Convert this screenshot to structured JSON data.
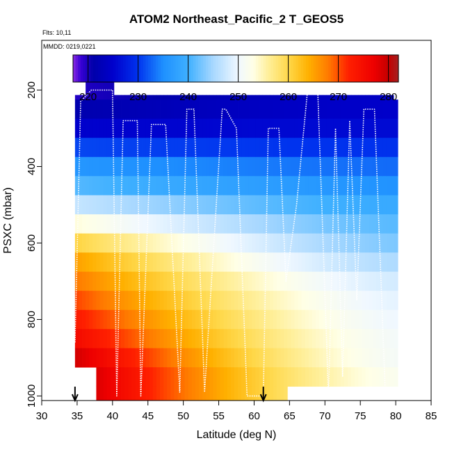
{
  "chart_data": {
    "type": "heatmap",
    "title": "ATOM2 Northeast_Pacific_2 T_GEOS5",
    "flights_label": "Flts: 10,11",
    "date_label": "MMDD: 0219,0221",
    "xlabel": "Latitude (deg N)",
    "ylabel": "PSXC (mbar)",
    "xlim": [
      30,
      85
    ],
    "ylim": [
      1012,
      70
    ],
    "x_ticks": [
      30,
      35,
      40,
      45,
      50,
      55,
      60,
      65,
      70,
      75,
      80,
      85
    ],
    "y_ticks": [
      200,
      400,
      600,
      800,
      1000
    ],
    "colorbar": {
      "min": 217,
      "max": 282,
      "ticks": [
        220,
        230,
        240,
        250,
        260,
        270,
        280
      ],
      "stops": [
        [
          217,
          "#8a2be2"
        ],
        [
          218.5,
          "#3a00d6"
        ],
        [
          221,
          "#0000aa"
        ],
        [
          225,
          "#0000cc"
        ],
        [
          230,
          "#0033ee"
        ],
        [
          235,
          "#1e90ff"
        ],
        [
          240,
          "#3fb0ff"
        ],
        [
          245,
          "#a8d8ff"
        ],
        [
          250,
          "#f0f8ff"
        ],
        [
          253,
          "#ffffe6"
        ],
        [
          256,
          "#ffef9a"
        ],
        [
          260,
          "#ffd84a"
        ],
        [
          264,
          "#ffb000"
        ],
        [
          268,
          "#ff7a00"
        ],
        [
          272,
          "#ff2000"
        ],
        [
          277,
          "#ee0000"
        ],
        [
          280,
          "#c40000"
        ],
        [
          282,
          "#a52020"
        ]
      ]
    },
    "lat_range": [
      34.7,
      80.3
    ],
    "temperature_profile": {
      "pressure": [
        180,
        220,
        260,
        300,
        340,
        380,
        420,
        460,
        500,
        540,
        580,
        620,
        660,
        700,
        740,
        780,
        820,
        860,
        900,
        940,
        980
      ],
      "temp_south": [
        219,
        220,
        222,
        225,
        230,
        234,
        238,
        242,
        247,
        252,
        258,
        263,
        266,
        268,
        270,
        272,
        274,
        276,
        279,
        281,
        281
      ],
      "temp_north": [
        224,
        224,
        225,
        226,
        229,
        232,
        234,
        236,
        239,
        241,
        242,
        244,
        246,
        248,
        249,
        250,
        250,
        251,
        251,
        252,
        252
      ]
    },
    "flight_track": {
      "lat": [
        34.7,
        35.5,
        37.0,
        40.0,
        40.6,
        41.5,
        43.5,
        44.0,
        45.5,
        47.5,
        49.5,
        50.5,
        51.5,
        53.0,
        55.5,
        56.0,
        57.5,
        59.0,
        61.3,
        62.0,
        63.5,
        64.5,
        66.0,
        67.5,
        69.0,
        70.5,
        71.5,
        72.5,
        73.5,
        74.5,
        75.5,
        77.0,
        78.5,
        80.0
      ],
      "pressure": [
        860,
        230,
        200,
        200,
        1000,
        280,
        280,
        1000,
        290,
        290,
        990,
        250,
        250,
        990,
        250,
        250,
        300,
        1000,
        1000,
        300,
        300,
        700,
        500,
        210,
        210,
        1000,
        300,
        950,
        280,
        750,
        250,
        250,
        980,
        980
      ]
    },
    "markers": [
      34.7,
      61.3
    ]
  }
}
